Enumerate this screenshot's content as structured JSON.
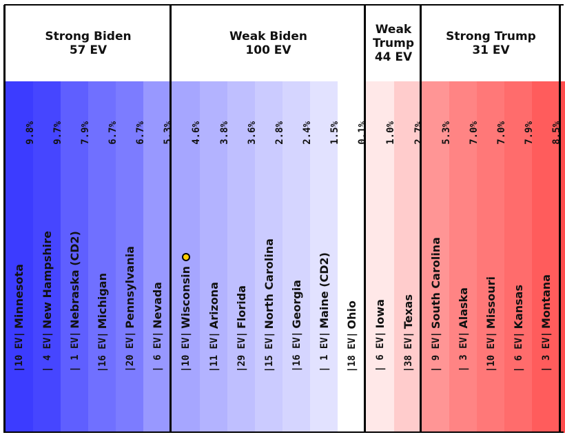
{
  "chart_data": {
    "type": "table",
    "groups": [
      {
        "title": "Strong Biden",
        "ev_label": "57 EV",
        "color": "#3333ff"
      },
      {
        "title": "Weak Biden",
        "ev_label": "100 EV",
        "color": "#aaaaff"
      },
      {
        "title": "Weak Trump",
        "ev_label": "44 EV",
        "color": "#ffaaaa"
      },
      {
        "title": "Strong Trump",
        "ev_label": "31 EV",
        "color": "#ff3333"
      }
    ],
    "states": [
      {
        "name": "Minnesota",
        "ev_text": "|10 EV|",
        "margin": "9.8%",
        "group": 0,
        "color": "#3c3cff"
      },
      {
        "name": "New Hampshire",
        "ev_text": "| 4 EV|",
        "margin": "9.7%",
        "group": 0,
        "color": "#4646ff"
      },
      {
        "name": "Nebraska (CD2)",
        "ev_text": "| 1 EV|",
        "margin": "7.9%",
        "group": 0,
        "color": "#5f5fff"
      },
      {
        "name": "Michigan",
        "ev_text": "|16 EV|",
        "margin": "6.7%",
        "group": 0,
        "color": "#7070ff"
      },
      {
        "name": "Pennsylvania",
        "ev_text": "|20 EV|",
        "margin": "6.7%",
        "group": 0,
        "color": "#7c7cff"
      },
      {
        "name": "Nevada",
        "ev_text": "| 6 EV|",
        "margin": "5.3%",
        "group": 0,
        "color": "#9898ff"
      },
      {
        "name": "Wisconsin",
        "ev_text": "|10 EV|",
        "margin": "4.6%",
        "group": 1,
        "color": "#a6a6ff",
        "tipping_point": true
      },
      {
        "name": "Arizona",
        "ev_text": "|11 EV|",
        "margin": "3.8%",
        "group": 1,
        "color": "#b3b3ff"
      },
      {
        "name": "Florida",
        "ev_text": "|29 EV|",
        "margin": "3.6%",
        "group": 1,
        "color": "#bfbfff"
      },
      {
        "name": "North Carolina",
        "ev_text": "|15 EV|",
        "margin": "2.8%",
        "group": 1,
        "color": "#cbcbff"
      },
      {
        "name": "Georgia",
        "ev_text": "|16 EV|",
        "margin": "2.4%",
        "group": 1,
        "color": "#d5d5ff"
      },
      {
        "name": "Maine (CD2)",
        "ev_text": "| 1 EV|",
        "margin": "1.5%",
        "group": 1,
        "color": "#e2e2ff"
      },
      {
        "name": "Ohio",
        "ev_text": "|18 EV|",
        "margin": "0.1%",
        "group": 1,
        "color": "#ffffff"
      },
      {
        "name": "Iowa",
        "ev_text": "| 6 EV|",
        "margin": "1.0%",
        "group": 2,
        "color": "#ffe8e8"
      },
      {
        "name": "Texas",
        "ev_text": "|38 EV|",
        "margin": "2.7%",
        "group": 2,
        "color": "#ffcccc"
      },
      {
        "name": "South Carolina",
        "ev_text": "| 9 EV|",
        "margin": "5.3%",
        "group": 3,
        "color": "#ff9595"
      },
      {
        "name": "Alaska",
        "ev_text": "| 3 EV|",
        "margin": "7.0%",
        "group": 3,
        "color": "#ff8484"
      },
      {
        "name": "Missouri",
        "ev_text": "|10 EV|",
        "margin": "7.0%",
        "group": 3,
        "color": "#ff7878"
      },
      {
        "name": "Kansas",
        "ev_text": "| 6 EV|",
        "margin": "7.9%",
        "group": 3,
        "color": "#ff6c6c"
      },
      {
        "name": "Montana",
        "ev_text": "| 3 EV|",
        "margin": "8.5%",
        "group": 3,
        "color": "#ff5c5c"
      }
    ],
    "trailing_fill_color": "#ff4d4d",
    "tipping_point_marker_color": "#ffcc00"
  }
}
